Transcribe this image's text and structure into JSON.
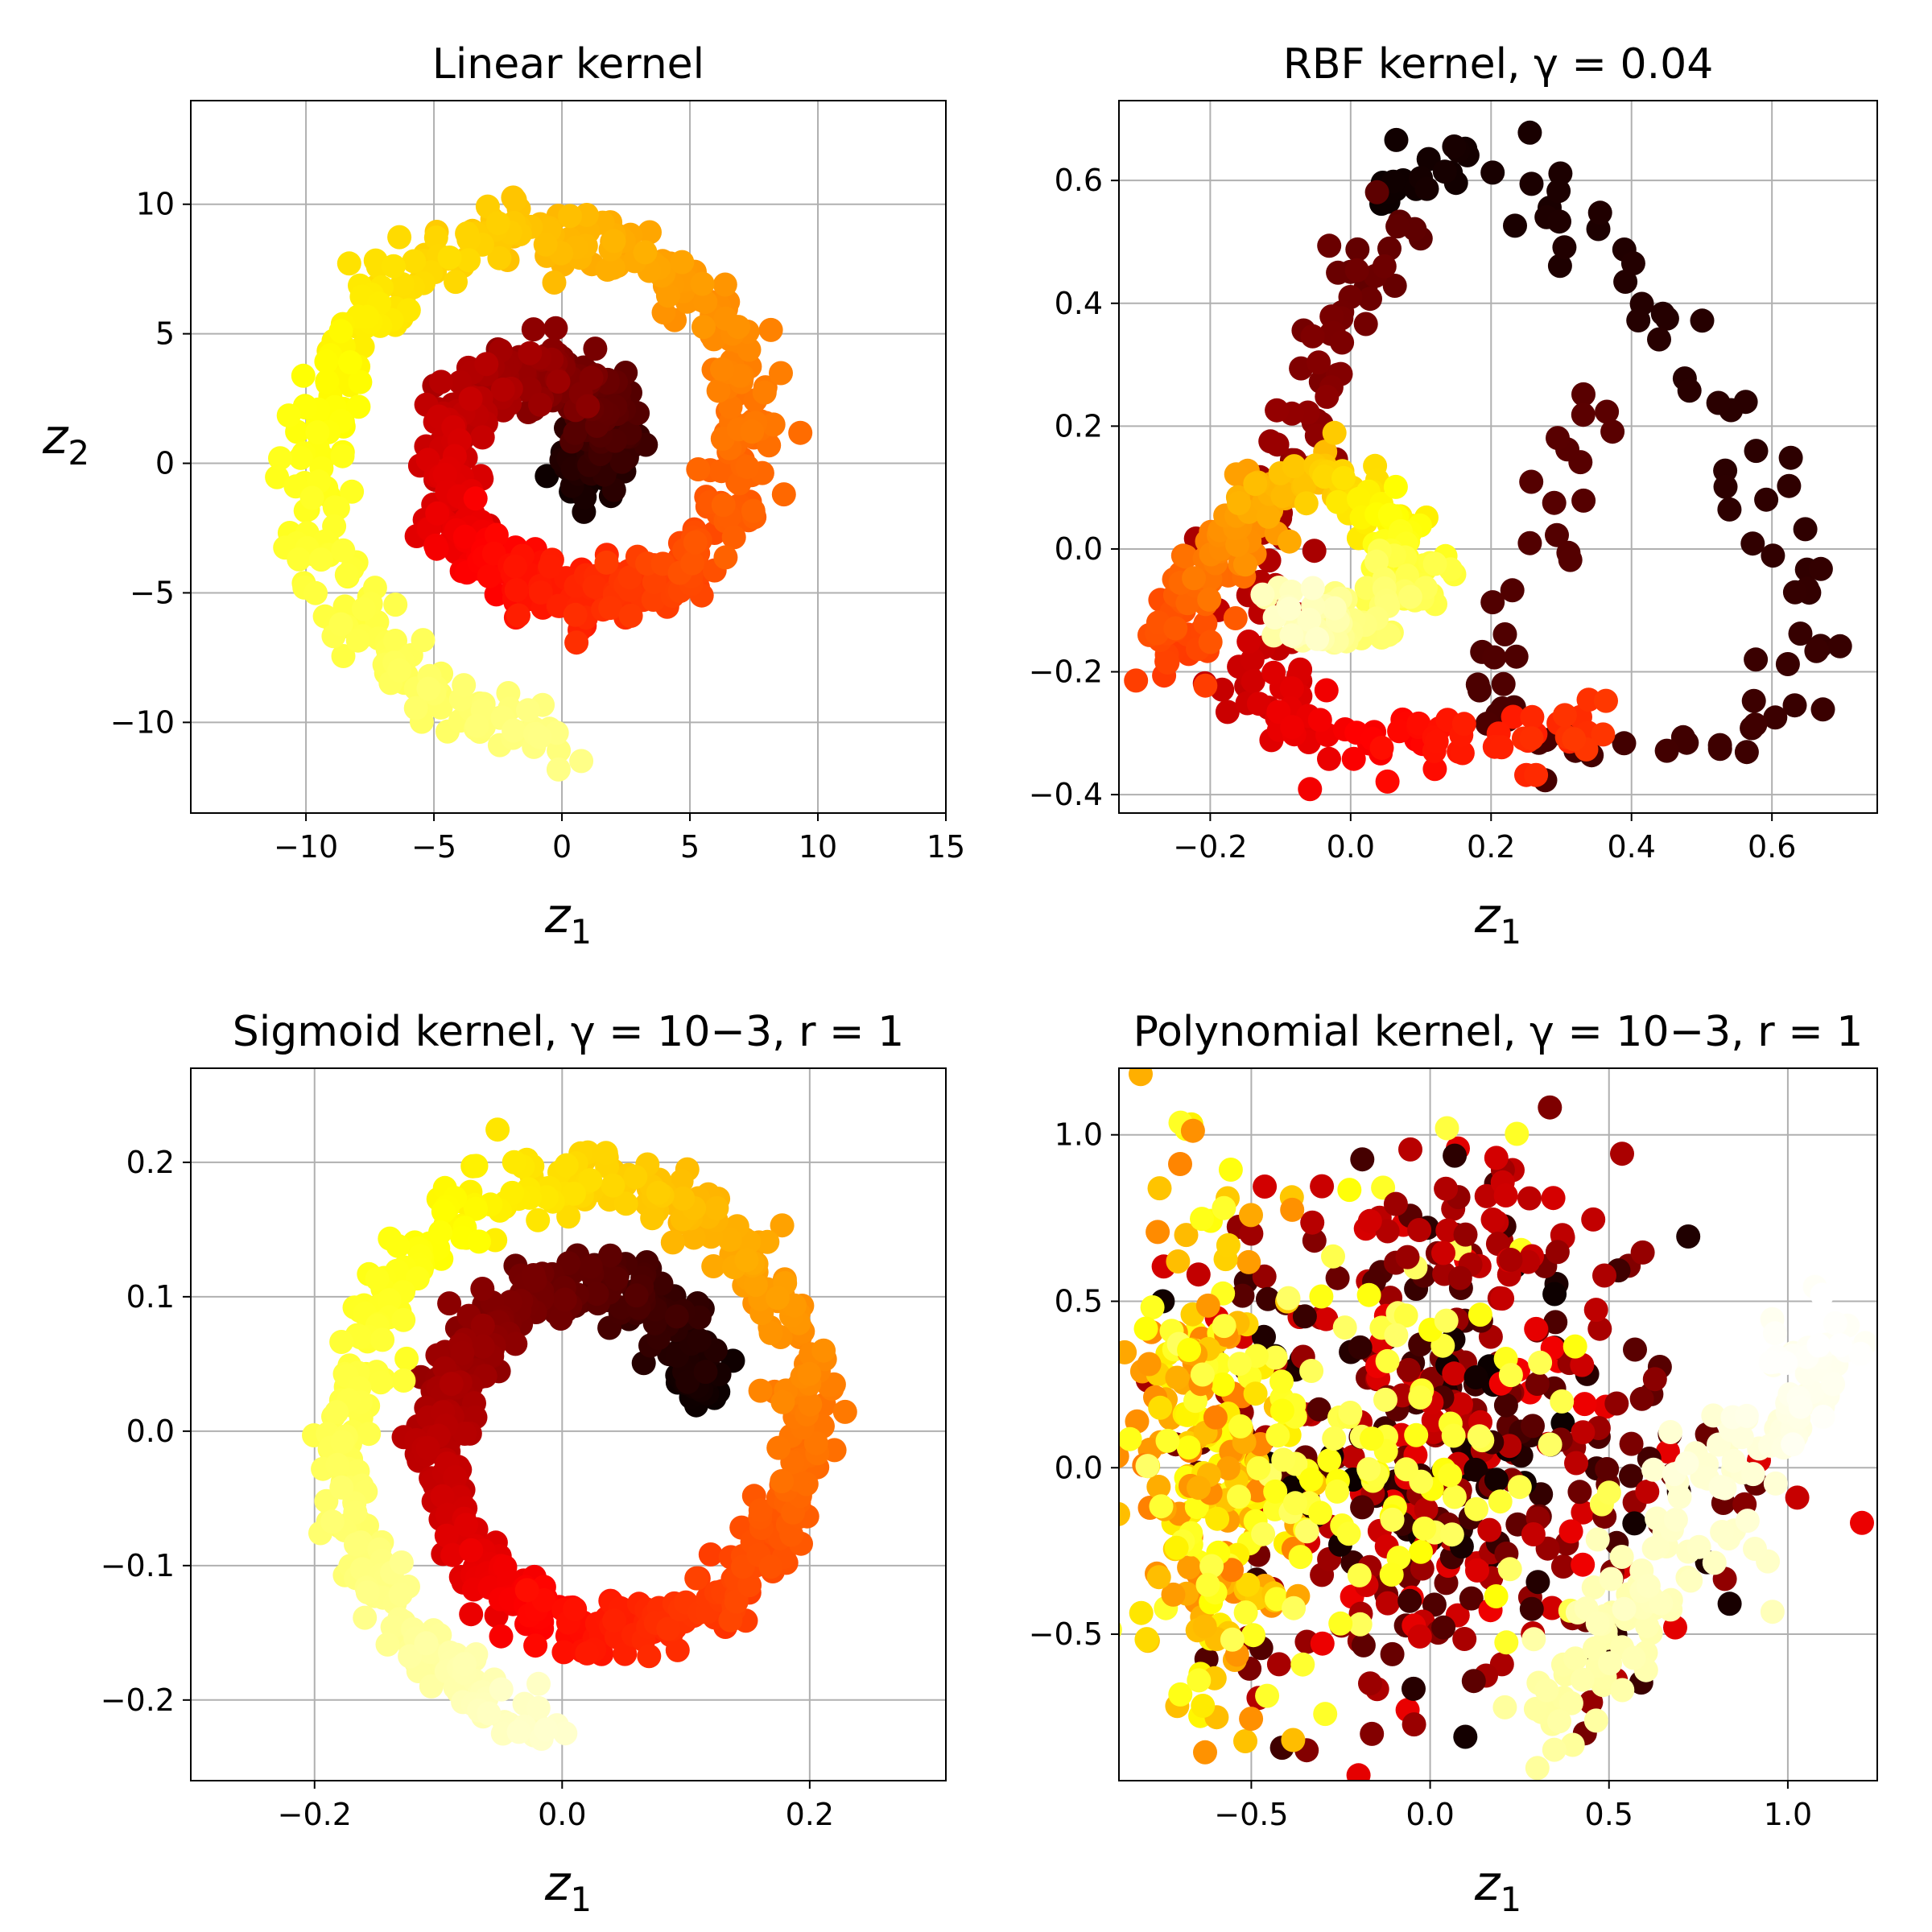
{
  "chart_data": [
    {
      "type": "scatter",
      "title": "Linear kernel",
      "xlabel": "z1",
      "ylabel": "z2",
      "xlim": [
        -14.5,
        15
      ],
      "ylim": [
        -13.5,
        14
      ],
      "xticks": [
        -10,
        -5,
        0,
        5,
        10,
        15
      ],
      "yticks": [
        -10,
        -5,
        0,
        5,
        10
      ],
      "xtick_labels": [
        "−10",
        "−5",
        "0",
        "5",
        "10",
        "15"
      ],
      "ytick_labels": [
        "−10",
        "−5",
        "0",
        "5",
        "10"
      ],
      "grid": true,
      "colormap": "hot",
      "series": [
        {
          "shape": "arc",
          "t_range": [
            0,
            0.88
          ],
          "center": [
            0,
            0.5
          ],
          "r": [
            -1,
            -11.2
          ],
          "angle_deg": [
            140,
            810
          ],
          "scatter": 0.7,
          "count": 900
        }
      ]
    },
    {
      "type": "scatter",
      "title": "RBF kernel, γ = 0.04",
      "xlabel": "z1",
      "ylabel": "",
      "xlim": [
        -0.33,
        0.75
      ],
      "ylim": [
        -0.43,
        0.73
      ],
      "xticks": [
        -0.2,
        0.0,
        0.2,
        0.4,
        0.6
      ],
      "yticks": [
        -0.4,
        -0.2,
        0.0,
        0.2,
        0.4,
        0.6
      ],
      "xtick_labels": [
        "−0.2",
        "0.0",
        "0.2",
        "0.4",
        "0.6"
      ],
      "ytick_labels": [
        "−0.4",
        "−0.2",
        "0.0",
        "0.2",
        "0.4",
        "0.6"
      ],
      "grid": true,
      "colormap": "hot",
      "series": [
        {
          "shape": "polyline",
          "t_range": [
            0.0,
            0.12
          ],
          "points": [
            [
              0.05,
              0.55
            ],
            [
              0.1,
              0.64
            ],
            [
              0.2,
              0.62
            ],
            [
              0.35,
              0.5
            ],
            [
              0.5,
              0.3
            ],
            [
              0.62,
              0.05
            ],
            [
              0.66,
              -0.15
            ],
            [
              0.55,
              -0.32
            ],
            [
              0.3,
              -0.33
            ],
            [
              0.18,
              -0.22
            ],
            [
              0.3,
              0.0
            ],
            [
              0.33,
              0.25
            ]
          ],
          "scatter": 0.03,
          "count": 120
        },
        {
          "shape": "polyline",
          "t_range": [
            0.12,
            0.45
          ],
          "points": [
            [
              0.05,
              0.55
            ],
            [
              -0.02,
              0.3
            ],
            [
              -0.1,
              0.05
            ],
            [
              -0.15,
              -0.2
            ],
            [
              -0.05,
              -0.3
            ],
            [
              0.15,
              -0.32
            ],
            [
              0.35,
              -0.28
            ]
          ],
          "scatter": 0.03,
          "count": 160
        },
        {
          "shape": "polyline",
          "t_range": [
            0.45,
            0.95
          ],
          "points": [
            [
              -0.26,
              -0.2
            ],
            [
              -0.22,
              -0.05
            ],
            [
              -0.15,
              0.05
            ],
            [
              -0.05,
              0.12
            ],
            [
              0.05,
              0.05
            ],
            [
              0.1,
              -0.05
            ],
            [
              0.0,
              -0.12
            ],
            [
              -0.1,
              -0.1
            ]
          ],
          "scatter": 0.025,
          "count": 260
        }
      ]
    },
    {
      "type": "scatter",
      "title": "Sigmoid kernel, γ = 10−3, r = 1",
      "xlabel": "z1",
      "ylabel": "",
      "xlim": [
        -0.3,
        0.31
      ],
      "ylim": [
        -0.26,
        0.27
      ],
      "xticks": [
        -0.2,
        0.0,
        0.2
      ],
      "yticks": [
        -0.2,
        -0.1,
        0.0,
        0.1,
        0.2
      ],
      "xtick_labels": [
        "−0.2",
        "0.0",
        "0.2"
      ],
      "ytick_labels": [
        "−0.2",
        "−0.1",
        "0.0",
        "0.1",
        "0.2"
      ],
      "grid": true,
      "colormap": "hot",
      "series": [
        {
          "shape": "arc",
          "t_range": [
            0,
            0.95
          ],
          "center": [
            0.03,
            0.0
          ],
          "r": [
            0.09,
            0.225
          ],
          "angle_deg": [
            20,
            620
          ],
          "scatter": 0.012,
          "count": 900
        }
      ]
    },
    {
      "type": "scatter",
      "title": "Polynomial kernel, γ = 10−3, r = 1",
      "xlabel": "z1",
      "ylabel": "",
      "xlim": [
        -0.87,
        1.25
      ],
      "ylim": [
        -0.94,
        1.2
      ],
      "xticks": [
        -0.5,
        0.0,
        0.5,
        1.0
      ],
      "yticks": [
        -0.5,
        0.0,
        0.5,
        1.0
      ],
      "xtick_labels": [
        "−0.5",
        "0.0",
        "0.5",
        "1.0"
      ],
      "ytick_labels": [
        "−0.5",
        "0.0",
        "0.5",
        "1.0"
      ],
      "grid": true,
      "colormap": "hot",
      "series": [
        {
          "shape": "blob",
          "t_range": [
            0.0,
            0.35
          ],
          "center": [
            0.05,
            0.05
          ],
          "spread": [
            0.35,
            0.38
          ],
          "count": 380
        },
        {
          "shape": "blob",
          "t_range": [
            0.55,
            0.8
          ],
          "center": [
            -0.62,
            0.05
          ],
          "spread": [
            0.12,
            0.38
          ],
          "count": 220
        },
        {
          "shape": "blob",
          "t_range": [
            0.75,
            0.85
          ],
          "center": [
            -0.2,
            0.05
          ],
          "spread": [
            0.3,
            0.35
          ],
          "count": 120
        },
        {
          "shape": "polyline",
          "t_range": [
            0.9,
            1.0
          ],
          "points": [
            [
              0.3,
              -0.8
            ],
            [
              0.55,
              -0.45
            ],
            [
              0.8,
              -0.1
            ],
            [
              1.0,
              0.2
            ],
            [
              1.1,
              0.4
            ]
          ],
          "scatter": 0.08,
          "count": 160
        },
        {
          "shape": "blob",
          "t_range": [
            0.2,
            0.3
          ],
          "center": [
            0.15,
            0.7
          ],
          "spread": [
            0.2,
            0.1
          ],
          "count": 40
        }
      ]
    }
  ]
}
